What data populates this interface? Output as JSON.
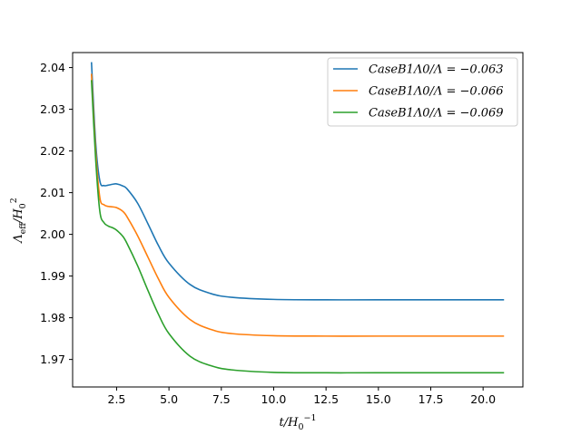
{
  "chart_data": {
    "type": "line",
    "title": "",
    "xlabel": "t/H0^-1",
    "ylabel": "Λeff/H0^2",
    "xlim": [
      0.4,
      21.9
    ],
    "ylim": [
      1.9634,
      2.0436
    ],
    "xticks": [
      "2.5",
      "5.0",
      "7.5",
      "10.0",
      "12.5",
      "15.0",
      "17.5",
      "20.0"
    ],
    "yticks": [
      "1.97",
      "1.98",
      "1.99",
      "2.00",
      "2.01",
      "2.02",
      "2.03",
      "2.04"
    ],
    "grid": false,
    "legend": "top-right",
    "series": [
      {
        "name": "CaseB1Λ0/Λ = −0.063",
        "color": "#1f77b4",
        "x": [
          1.3,
          1.5,
          1.7,
          1.9,
          2.1,
          2.3,
          2.5,
          2.8,
          3.0,
          3.5,
          4.0,
          4.5,
          5.0,
          6.0,
          7.0,
          8.0,
          10.0,
          12.5,
          15.0,
          21.0
        ],
        "y": [
          2.0413,
          2.022,
          2.0128,
          2.0117,
          2.0118,
          2.012,
          2.0121,
          2.0116,
          2.0109,
          2.0075,
          2.0025,
          1.9973,
          1.9931,
          1.988,
          1.9858,
          1.9849,
          1.9844,
          1.9843,
          1.9843,
          1.9843
        ]
      },
      {
        "name": "CaseB1Λ0/Λ = −0.066",
        "color": "#ff7f0e",
        "x": [
          1.3,
          1.5,
          1.7,
          1.9,
          2.1,
          2.3,
          2.5,
          2.8,
          3.0,
          3.5,
          4.0,
          4.5,
          5.0,
          6.0,
          7.0,
          8.0,
          10.0,
          12.5,
          15.0,
          21.0
        ],
        "y": [
          2.0385,
          2.02,
          2.0088,
          2.0071,
          2.0067,
          2.0066,
          2.0064,
          2.0055,
          2.0042,
          1.9997,
          1.9945,
          1.9893,
          1.9849,
          1.9796,
          1.9772,
          1.9762,
          1.9757,
          1.9756,
          1.9756,
          1.9756
        ]
      },
      {
        "name": "CaseB1Λ0/Λ = −0.069",
        "color": "#2ca02c",
        "x": [
          1.3,
          1.5,
          1.7,
          1.9,
          2.1,
          2.3,
          2.5,
          2.8,
          3.0,
          3.5,
          4.0,
          4.5,
          5.0,
          6.0,
          7.0,
          8.0,
          10.0,
          12.5,
          15.0,
          21.0
        ],
        "y": [
          2.037,
          2.018,
          2.0055,
          2.0028,
          2.002,
          2.0016,
          2.001,
          1.9995,
          1.9978,
          1.9925,
          1.9865,
          1.9808,
          1.9762,
          1.9708,
          1.9685,
          1.9675,
          1.9669,
          1.9668,
          1.9668,
          1.9668
        ]
      }
    ]
  }
}
